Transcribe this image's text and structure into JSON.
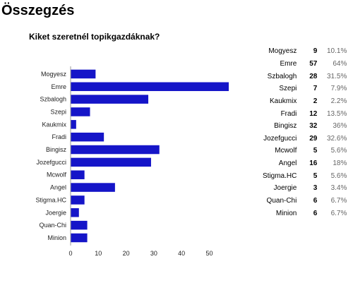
{
  "page": {
    "title": "Összegzés",
    "question": "Kiket szeretnél topikgazdáknak?"
  },
  "colors": {
    "bar": "#1515c8",
    "axis": "#999999"
  },
  "summary": [
    {
      "name": "Mogyesz",
      "count": "9",
      "percent": "10.1%"
    },
    {
      "name": "Emre",
      "count": "57",
      "percent": "64%"
    },
    {
      "name": "Szbalogh",
      "count": "28",
      "percent": "31.5%"
    },
    {
      "name": "Szepi",
      "count": "7",
      "percent": "7.9%"
    },
    {
      "name": "Kaukmix",
      "count": "2",
      "percent": "2.2%"
    },
    {
      "name": "Fradi",
      "count": "12",
      "percent": "13.5%"
    },
    {
      "name": "Bingisz",
      "count": "32",
      "percent": "36%"
    },
    {
      "name": "Jozefgucci",
      "count": "29",
      "percent": "32.6%"
    },
    {
      "name": "Mcwolf",
      "count": "5",
      "percent": "5.6%"
    },
    {
      "name": "Angel",
      "count": "16",
      "percent": "18%"
    },
    {
      "name": "Stigma.HC",
      "count": "5",
      "percent": "5.6%"
    },
    {
      "name": "Joergie",
      "count": "3",
      "percent": "3.4%"
    },
    {
      "name": "Quan-Chi",
      "count": "6",
      "percent": "6.7%"
    },
    {
      "name": "Minion",
      "count": "6",
      "percent": "6.7%"
    }
  ],
  "chart_data": {
    "type": "bar",
    "orientation": "horizontal",
    "title": "Kiket szeretnél topikgazdáknak?",
    "categories": [
      "Mogyesz",
      "Emre",
      "Szbalogh",
      "Szepi",
      "Kaukmix",
      "Fradi",
      "Bingisz",
      "Jozefgucci",
      "Mcwolf",
      "Angel",
      "Stigma.HC",
      "Joergie",
      "Quan-Chi",
      "Minion"
    ],
    "values": [
      9,
      57,
      28,
      7,
      2,
      12,
      32,
      29,
      5,
      16,
      5,
      3,
      6,
      6
    ],
    "xticks": [
      0,
      10,
      20,
      30,
      40,
      50
    ],
    "xlim": [
      0,
      57
    ],
    "grid": false,
    "legend": "none"
  }
}
